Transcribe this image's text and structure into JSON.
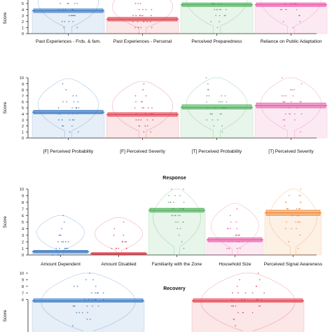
{
  "figure": {
    "panel_titles": [
      "",
      "",
      "Response",
      "Recovery"
    ],
    "ylabel": "Score"
  },
  "colors": {
    "blue": "#3a78c2",
    "red": "#e0414f",
    "green": "#4cae5a",
    "pink": "#e85aa6",
    "orange": "#ee8a38",
    "axis": "#222222"
  },
  "chart_data": [
    {
      "type": "box",
      "title": "",
      "ylabel": "Score",
      "ylim": [
        0,
        10
      ],
      "yticks": [
        0,
        1,
        2,
        3,
        4,
        5
      ],
      "categories": [
        "Past Experiences - Frds. & fam.",
        "Past Experiences - Personal",
        "Perceived Preparedness",
        "Reliance on Public Adaptation"
      ],
      "colors": [
        "blue",
        "red",
        "green",
        "pink"
      ],
      "means": [
        3.8,
        2.4,
        4.8,
        4.8
      ],
      "ci": [
        [
          3.5,
          4.1
        ],
        [
          2.1,
          2.7
        ],
        [
          4.5,
          5.1
        ],
        [
          4.5,
          5.1
        ]
      ]
    },
    {
      "type": "box",
      "title": "",
      "ylabel": "Score",
      "ylim": [
        0,
        10
      ],
      "yticks": [
        0,
        1,
        2,
        3,
        4,
        5,
        6,
        7,
        8,
        9,
        10
      ],
      "categories": [
        "[F] Perceived Probability",
        "[F] Perceived Severity",
        "[T] Perceived Probability",
        "[T] Perceived Severity"
      ],
      "colors": [
        "blue",
        "red",
        "green",
        "pink"
      ],
      "means": [
        4.3,
        3.9,
        5.1,
        5.4
      ],
      "ci": [
        [
          4.0,
          4.6
        ],
        [
          3.6,
          4.2
        ],
        [
          4.8,
          5.5
        ],
        [
          5.0,
          5.8
        ]
      ]
    },
    {
      "type": "box",
      "title": "Response",
      "ylabel": "Score",
      "ylim": [
        0,
        10
      ],
      "yticks": [
        0,
        1,
        2,
        3,
        4,
        5,
        6,
        7,
        8,
        9,
        10
      ],
      "categories": [
        "Amount Dependent",
        "Amount Disabled",
        "Familiarity with the Zone",
        "Household Size",
        "Perceived Signal Awareness"
      ],
      "colors": [
        "blue",
        "red",
        "green",
        "pink",
        "orange"
      ],
      "means": [
        0.5,
        0.2,
        6.8,
        2.3,
        6.4
      ],
      "ci": [
        [
          0.3,
          0.7
        ],
        [
          0.1,
          0.35
        ],
        [
          6.5,
          7.1
        ],
        [
          2.0,
          2.6
        ],
        [
          6.0,
          6.8
        ]
      ]
    },
    {
      "type": "box",
      "title": "Recovery",
      "ylabel": "Score",
      "ylim": [
        0,
        10
      ],
      "yticks": [
        6,
        7,
        8,
        9,
        10
      ],
      "categories": [],
      "colors": [
        "blue",
        "red"
      ],
      "means": [
        5.8,
        5.8
      ],
      "ci": [
        [
          5.6,
          6.1
        ],
        [
          5.6,
          6.1
        ]
      ]
    }
  ]
}
